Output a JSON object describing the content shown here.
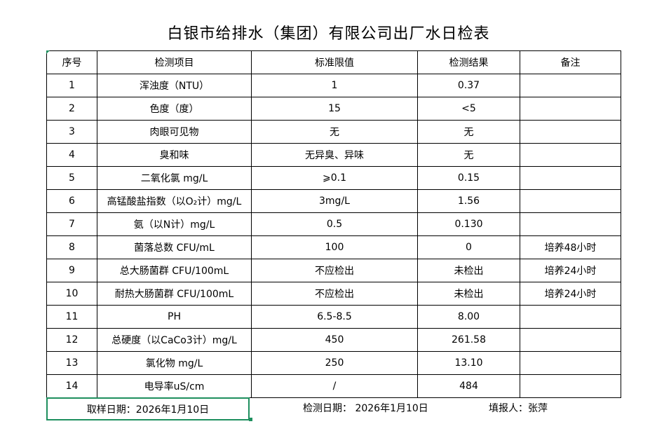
{
  "title": "白银市给排水（集团）有限公司出厂水日检表",
  "headers": [
    "序号",
    "检测项目",
    "标准限值",
    "检测结果",
    "备注"
  ],
  "rows": [
    [
      "1",
      "浑浊度（NTU）",
      "1",
      "0.37",
      ""
    ],
    [
      "2",
      "色度（度）",
      "15",
      "<5",
      ""
    ],
    [
      "3",
      "肉眼可见物",
      "无",
      "无",
      ""
    ],
    [
      "4",
      "臭和味",
      "无异臭、异味",
      "无",
      ""
    ],
    [
      "5",
      "二氧化氯 mg/L",
      "⩾0.1",
      "0.15",
      ""
    ],
    [
      "6",
      "高锰酸盐指数（以O₂计）mg/L",
      "3mg/L",
      "1.56",
      ""
    ],
    [
      "7",
      "氨（以N计）mg/L",
      "0.5",
      "0.130",
      ""
    ],
    [
      "8",
      "菌落总数 CFU/mL",
      "100",
      "0",
      "培养48小时"
    ],
    [
      "9",
      "总大肠菌群 CFU/100mL",
      "不应检出",
      "未检出",
      "培养24小时"
    ],
    [
      "10",
      "耐热大肠菌群 CFU/100mL",
      "不应检出",
      "未检出",
      "培养24小时"
    ],
    [
      "11",
      "PH",
      "6.5-8.5",
      "8.00",
      ""
    ],
    [
      "12",
      "总硬度（以CaCo3计）mg/L",
      "450",
      "261.58",
      ""
    ],
    [
      "13",
      "氯化物 mg/L",
      "250",
      "13.10",
      ""
    ],
    [
      "14",
      "电导率uS/cm",
      "/",
      "484",
      ""
    ]
  ],
  "footer": {
    "sample_date": "取样日期：2026年1月10日",
    "test_date": "检测日期：  2026年1月10日",
    "reporter": "填报人：张萍"
  },
  "colors": {
    "selection": "#1e8f5e"
  }
}
